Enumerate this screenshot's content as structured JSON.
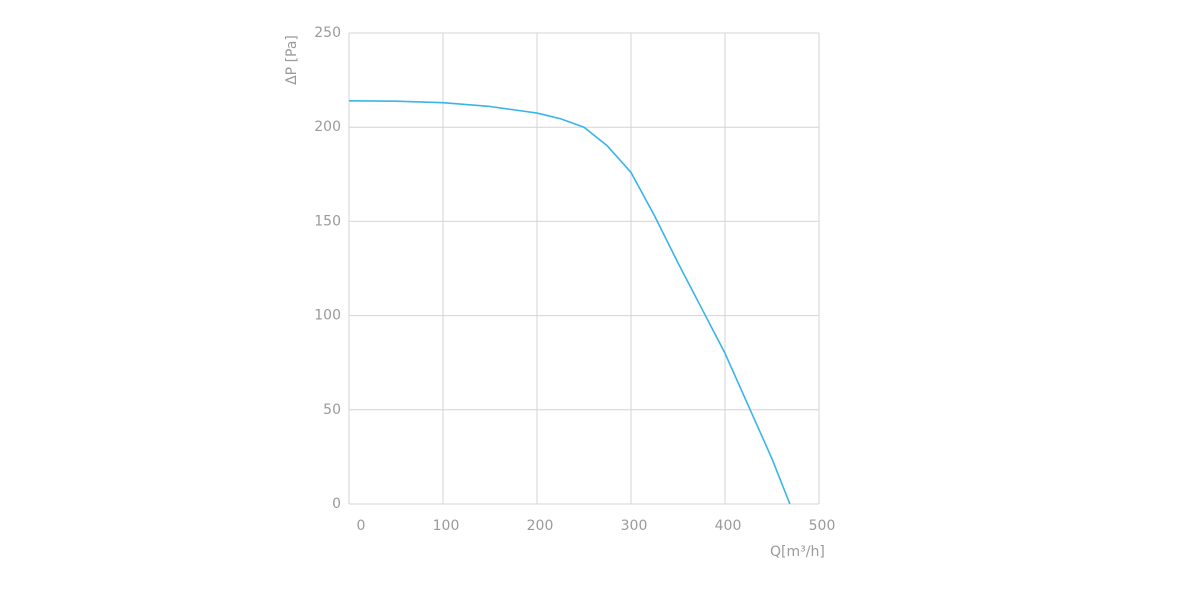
{
  "chart_data": {
    "type": "line",
    "xlabel": "Q[m³/h]",
    "ylabel": "ΔP [Pa]",
    "x": [
      0,
      50,
      100,
      150,
      200,
      225,
      250,
      275,
      300,
      325,
      350,
      375,
      400,
      425,
      450,
      469
    ],
    "values": [
      214,
      213.8,
      213,
      211,
      207.5,
      204.5,
      200,
      190,
      176,
      153,
      128,
      104,
      80,
      52,
      24,
      0
    ],
    "color": "#3ab4e8",
    "xlim": [
      0,
      500
    ],
    "xticks": [
      0,
      100,
      200,
      300,
      400,
      500
    ],
    "ylim": [
      0,
      250
    ],
    "yticks": [
      0,
      50,
      100,
      150,
      200,
      250
    ],
    "grid": true
  }
}
